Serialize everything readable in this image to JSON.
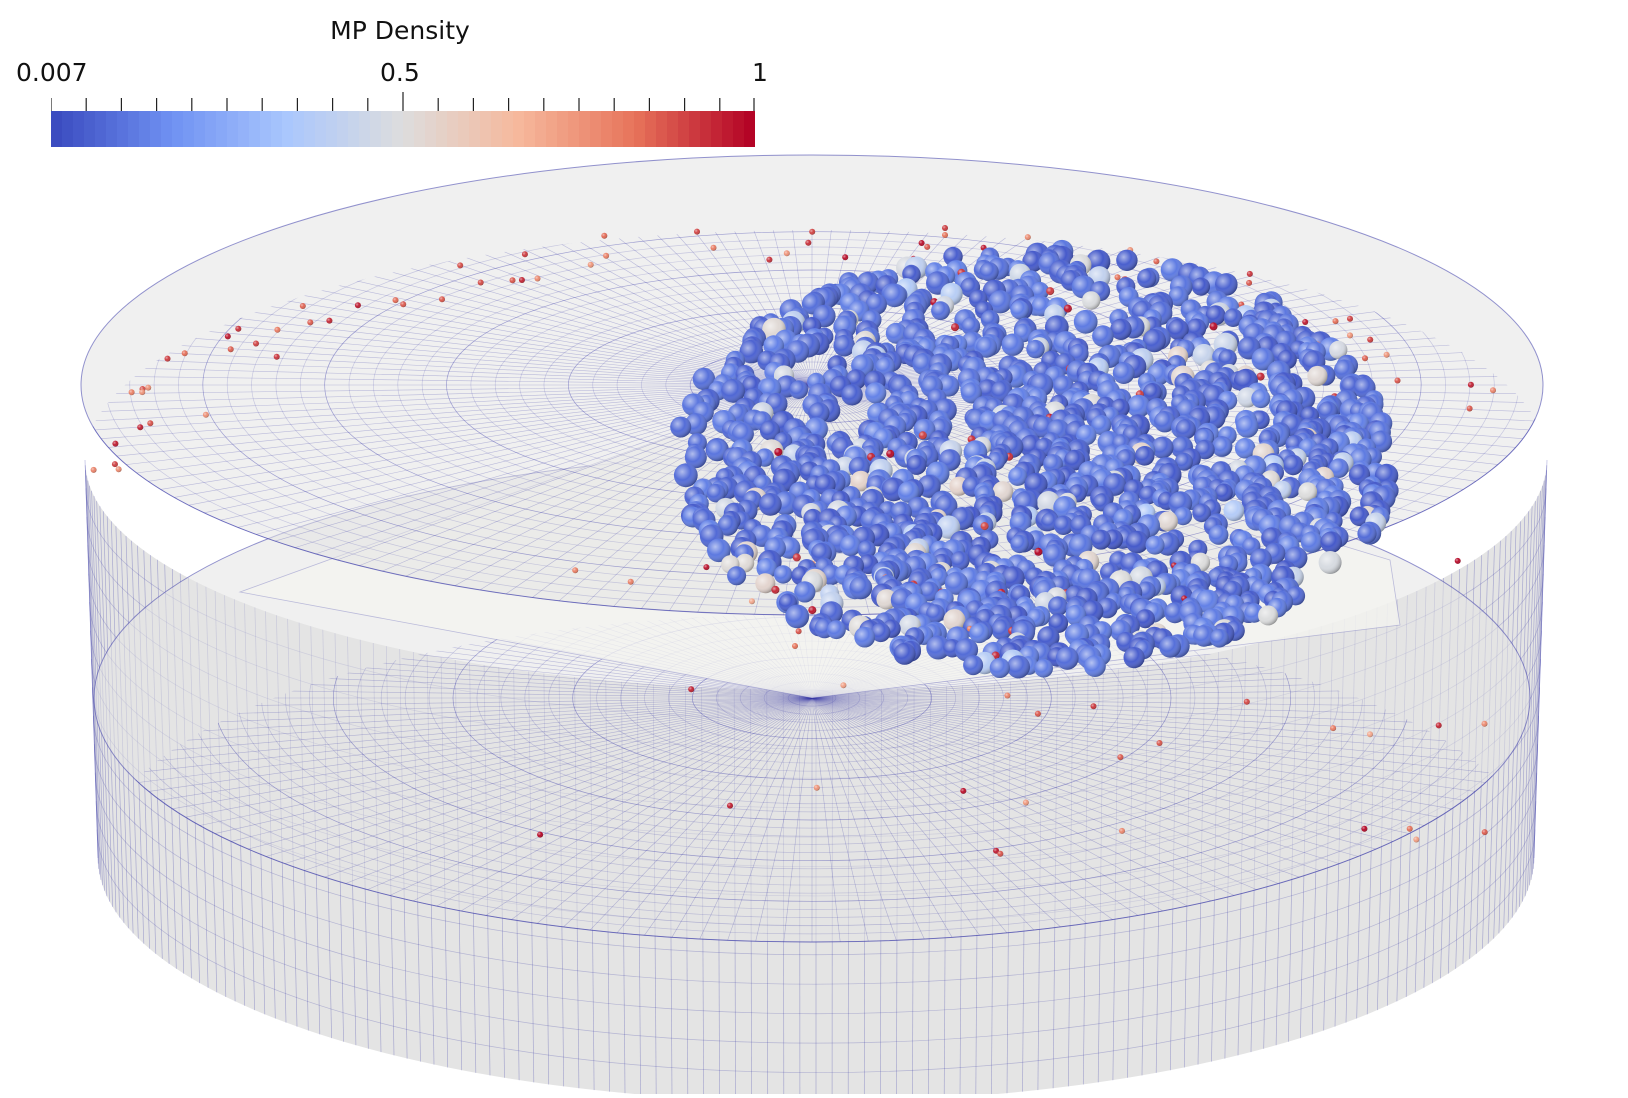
{
  "legend": {
    "title": "MP Density",
    "min_label": "0.007",
    "mid_label": "0.5",
    "max_label": "1",
    "colormap": [
      "#3b4cc0",
      "#6f91f2",
      "#aac7fd",
      "#dddddd",
      "#f6b89c",
      "#e7745b",
      "#b40426"
    ]
  },
  "scene": {
    "background": "#ffffff",
    "mesh_fill": "#e4e4e4",
    "mesh_line": "#3c3caa",
    "object": "cylinder-mesh",
    "particles_description_icon": "sphere-icon"
  }
}
